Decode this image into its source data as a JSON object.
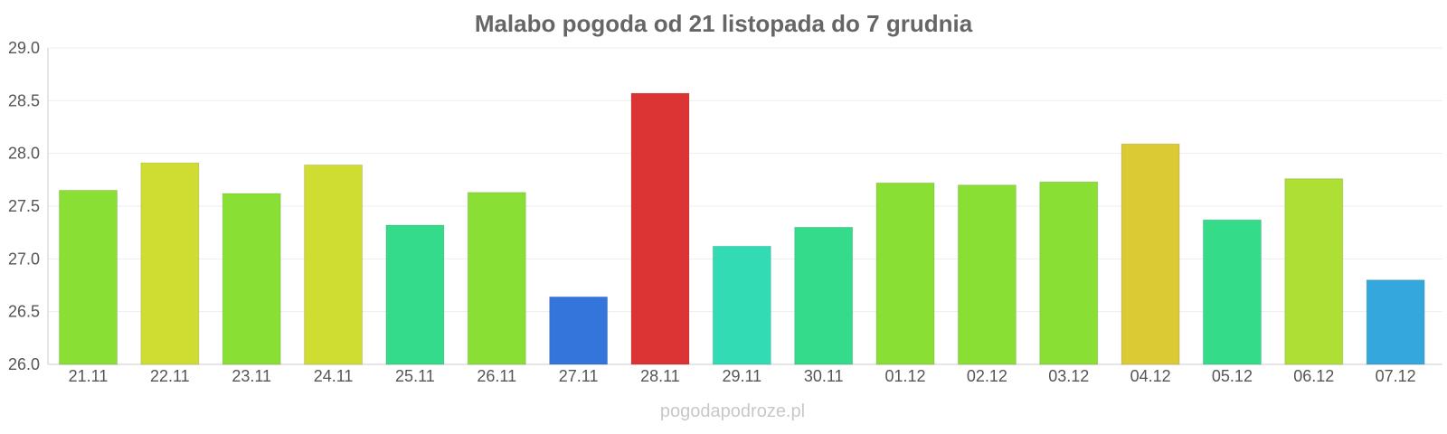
{
  "chart_data": {
    "type": "bar",
    "title": "Malabo pogoda od 21 listopada do 7 grudnia",
    "xlabel": "",
    "ylabel": "",
    "ylim": [
      26.0,
      29.0
    ],
    "yticks": [
      "26.0",
      "26.5",
      "27.0",
      "27.5",
      "28.0",
      "28.5",
      "29.0"
    ],
    "grid": true,
    "categories": [
      "21.11",
      "22.11",
      "23.11",
      "24.11",
      "25.11",
      "26.11",
      "27.11",
      "28.11",
      "29.11",
      "30.11",
      "01.12",
      "02.12",
      "03.12",
      "04.12",
      "05.12",
      "06.12",
      "07.12"
    ],
    "values": [
      27.65,
      27.91,
      27.62,
      27.89,
      27.32,
      27.63,
      26.64,
      28.57,
      27.12,
      27.3,
      27.72,
      27.7,
      27.73,
      28.09,
      27.37,
      27.76,
      26.8
    ],
    "colors": [
      "#8adf34",
      "#cfdd33",
      "#8adf34",
      "#cfdd33",
      "#33db8a",
      "#8adf34",
      "#3475dc",
      "#dc3434",
      "#33dbb5",
      "#33db8a",
      "#8adf34",
      "#8adf34",
      "#8adf34",
      "#dbca33",
      "#34dc8a",
      "#addf34",
      "#34a8dc"
    ]
  },
  "watermark": "pogodapodroze.pl"
}
